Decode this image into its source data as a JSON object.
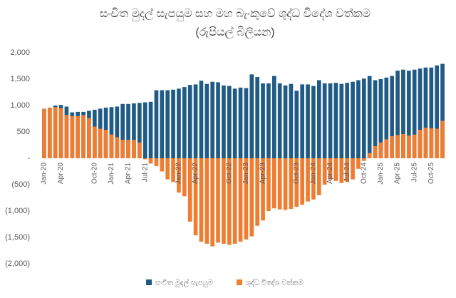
{
  "chart_data": {
    "type": "bar",
    "title": "සංචිත මුදල් සැපයුම සහ මහ බැංකුවේ ශුද්ධ විදේශ වත්කම",
    "subtitle": "(රුපියල් බිලියන)",
    "categories": [
      "Jan-20",
      null,
      null,
      "Apr-20",
      null,
      null,
      null,
      null,
      null,
      "Oct-20",
      null,
      null,
      "Jan-21",
      null,
      null,
      "Apr-21",
      null,
      null,
      "Jul-21",
      null,
      null,
      null,
      null,
      null,
      "Jan-22",
      null,
      null,
      "Apr-22",
      null,
      null,
      null,
      null,
      null,
      "Oct-22",
      null,
      null,
      "Jan-23",
      null,
      null,
      "Apr-23",
      null,
      null,
      null,
      null,
      null,
      "Oct-23",
      null,
      null,
      "Jan-24",
      null,
      null,
      "Apr-24",
      null,
      null,
      "Jul-24",
      null,
      null,
      "Oct-24",
      null,
      null,
      "Jan-25",
      null,
      null,
      "Apr-25",
      null,
      null,
      "Jul-25",
      null,
      null,
      "Oct-25",
      null,
      null
    ],
    "series": [
      {
        "name": "සංචිත මුදල් සැපයුම",
        "color": "#1f5b85",
        "values": [
          930,
          950,
          1000,
          1010,
          980,
          870,
          880,
          880,
          900,
          920,
          940,
          960,
          970,
          980,
          1030,
          1030,
          1040,
          1050,
          1060,
          1070,
          1290,
          1290,
          1290,
          1300,
          1320,
          1350,
          1390,
          1400,
          1470,
          1410,
          1450,
          1440,
          1380,
          1370,
          1320,
          1340,
          1330,
          1590,
          1540,
          1420,
          1420,
          1560,
          1420,
          1380,
          1410,
          1280,
          1400,
          1400,
          1370,
          1480,
          1420,
          1420,
          1430,
          1410,
          1430,
          1450,
          1480,
          1510,
          1560,
          1480,
          1500,
          1530,
          1560,
          1660,
          1680,
          1660,
          1680,
          1700,
          1720,
          1720,
          1760,
          1790
        ]
      },
      {
        "name": "ශුද්ධ විදේශ වත්කම",
        "color": "#ee7d31",
        "values": [
          940,
          960,
          970,
          950,
          820,
          800,
          800,
          820,
          760,
          600,
          560,
          540,
          450,
          400,
          350,
          350,
          350,
          300,
          -20,
          -100,
          -150,
          -250,
          -400,
          -450,
          -650,
          -720,
          -1200,
          -1460,
          -1580,
          -1620,
          -1670,
          -1600,
          -1620,
          -1640,
          -1620,
          -1580,
          -1540,
          -1480,
          -1280,
          -1180,
          -1000,
          -950,
          -970,
          -980,
          -960,
          -920,
          -880,
          -820,
          -780,
          -700,
          -500,
          -400,
          -430,
          -470,
          -450,
          -400,
          -200,
          -50,
          100,
          230,
          300,
          360,
          420,
          440,
          460,
          430,
          450,
          540,
          580,
          570,
          560,
          710
        ]
      }
    ],
    "ylim": [
      -2000,
      2000
    ],
    "yticks": [
      {
        "value": 2000,
        "label": "2,000"
      },
      {
        "value": 1500,
        "label": "1,500"
      },
      {
        "value": 1000,
        "label": "1,000"
      },
      500,
      {
        "value": 0,
        "label": "-"
      },
      {
        "value": -500,
        "label": "(500)"
      },
      {
        "value": -1000,
        "label": "(1,000)"
      },
      {
        "value": -1500,
        "label": "(1,500)"
      },
      {
        "value": -2000,
        "label": "(2,000)"
      }
    ],
    "grid": false,
    "legend": "bottom"
  }
}
